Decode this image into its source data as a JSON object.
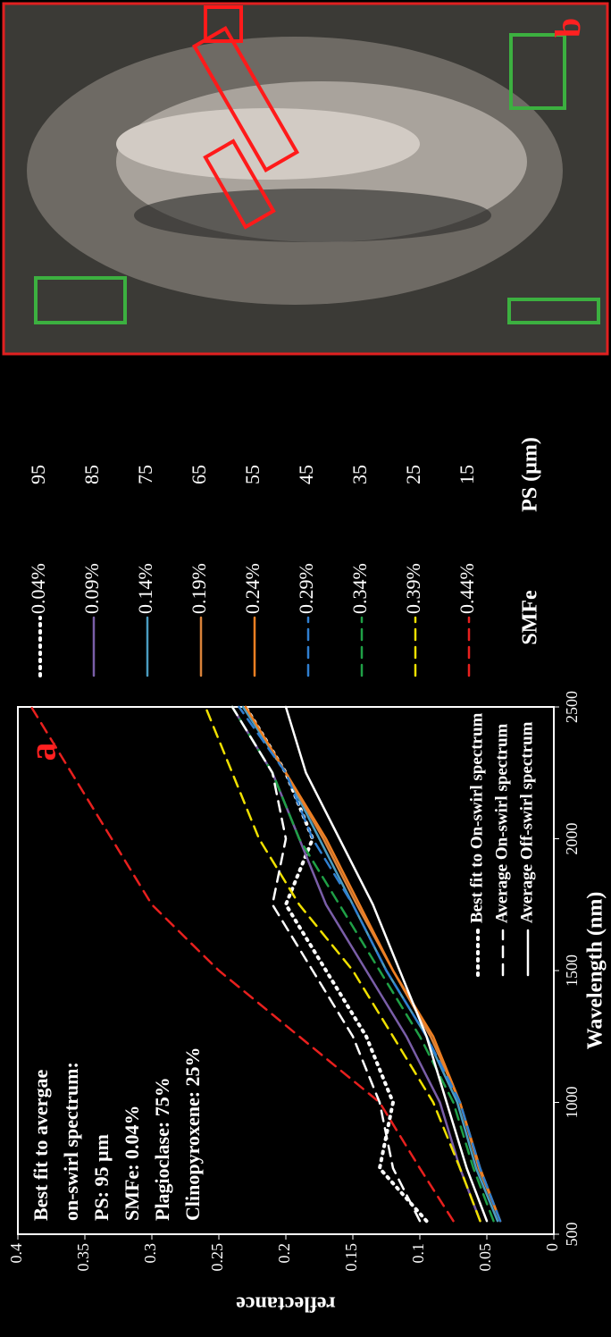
{
  "chart_data": {
    "type": "line",
    "panel_a_label": "a",
    "panel_b_label": "b",
    "annotation": [
      "Best fit to avergae",
      "on-swirl spectrum:",
      "PS: 95 µm",
      "SMFe: 0.04%",
      "Plagioclase: 75%",
      "Clinopyroxene: 25%"
    ],
    "xlabel": "Wavelength (nm)",
    "ylabel": "reflectance",
    "xlim": [
      500,
      2500
    ],
    "xticks": [
      500,
      1000,
      1500,
      2000,
      2500
    ],
    "ylim": [
      0,
      0.4
    ],
    "yticks": [
      0,
      0.05,
      0.1,
      0.15,
      0.2,
      0.25,
      0.3,
      0.35,
      0.4
    ],
    "x": [
      550,
      750,
      1000,
      1250,
      1500,
      1750,
      2000,
      2250,
      2500
    ],
    "legend_header": [
      "SMFe",
      "PS (µm)"
    ],
    "series": [
      {
        "name": "0.04%",
        "ps": "95",
        "inline_name": "Best fit to On-swirl spectrum",
        "color": "#ffffff",
        "dash": "dot",
        "values": [
          0.095,
          0.13,
          0.12,
          0.14,
          0.17,
          0.2,
          0.18,
          0.2,
          0.23
        ]
      },
      {
        "name": "0.09%",
        "ps": "85",
        "color": "#7a5ea8",
        "dash": "solid",
        "values": [
          0.055,
          0.07,
          0.085,
          0.11,
          0.14,
          0.17,
          0.19,
          0.21,
          0.24
        ]
      },
      {
        "name": "0.14%",
        "ps": "75",
        "color": "#4a9cc0",
        "dash": "solid",
        "values": [
          0.042,
          0.058,
          0.072,
          0.095,
          0.125,
          0.15,
          0.175,
          0.2,
          0.232
        ]
      },
      {
        "name": "0.19%",
        "ps": "65",
        "color": "#d9823a",
        "dash": "solid",
        "values": [
          0.04,
          0.056,
          0.07,
          0.092,
          0.12,
          0.147,
          0.172,
          0.2,
          0.23
        ]
      },
      {
        "name": "0.24%",
        "ps": "55",
        "color": "#ee7f22",
        "dash": "solid",
        "values": [
          0.04,
          0.055,
          0.07,
          0.09,
          0.12,
          0.145,
          0.17,
          0.2,
          0.23
        ]
      },
      {
        "name": "0.29%",
        "ps": "45",
        "color": "#2f7fd0",
        "dash": "dash",
        "values": [
          0.04,
          0.055,
          0.07,
          0.095,
          0.125,
          0.15,
          0.18,
          0.2,
          0.235
        ]
      },
      {
        "name": "0.34%",
        "ps": "35",
        "color": "#1fa046",
        "dash": "dash",
        "values": [
          0.045,
          0.06,
          0.075,
          0.1,
          0.13,
          0.16,
          0.19,
          0.21,
          0.24
        ]
      },
      {
        "name": "0.39%",
        "ps": "25",
        "color": "#f0e000",
        "dash": "dash",
        "values": [
          0.055,
          0.07,
          0.09,
          0.12,
          0.15,
          0.19,
          0.22,
          0.24,
          0.26
        ]
      },
      {
        "name": "0.44%",
        "ps": "15",
        "color": "#e8201e",
        "dash": "dash",
        "values": [
          0.075,
          0.1,
          0.13,
          0.19,
          0.25,
          0.3,
          0.33,
          0.36,
          0.39
        ]
      },
      {
        "name": "Average On-swirl spectrum",
        "color": "#ffffff",
        "dash": "dash",
        "values": [
          0.1,
          0.12,
          0.13,
          0.15,
          0.18,
          0.21,
          0.2,
          0.21,
          0.24
        ]
      },
      {
        "name": "Average Off-swirl spectrum",
        "color": "#ffffff",
        "dash": "solid",
        "values": [
          0.05,
          0.065,
          0.08,
          0.095,
          0.115,
          0.135,
          0.16,
          0.185,
          0.2
        ]
      }
    ]
  }
}
